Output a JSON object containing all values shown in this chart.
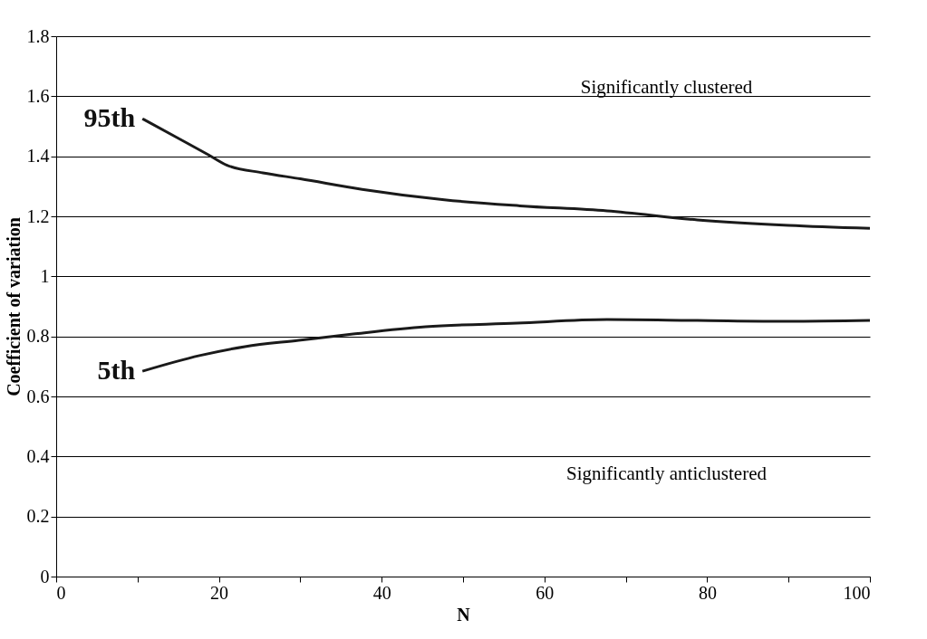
{
  "chart_data": {
    "type": "line",
    "xlabel": "N",
    "ylabel": "Coefficient of variation",
    "xlim": [
      0,
      100
    ],
    "ylim": [
      0,
      1.8
    ],
    "xticks": [
      0,
      {
        "value": 10,
        "label": null
      },
      20,
      {
        "value": 30,
        "label": null
      },
      40,
      {
        "value": 50,
        "label": null
      },
      60,
      {
        "value": 70,
        "label": null
      },
      80,
      {
        "value": 90,
        "label": null
      },
      100
    ],
    "yticks": [
      0,
      0.2,
      0.4,
      0.6,
      0.8,
      1,
      1.2,
      1.4,
      1.6,
      1.8
    ],
    "grid": "y",
    "legend": false,
    "line_style": "solid",
    "annotations": [
      "Significantly clustered",
      "Significantly anticlustered"
    ],
    "series": [
      {
        "name": "95th",
        "color": "#1a1a1a",
        "x": [
          10.6,
          15,
          18.7,
          21,
          25.4,
          30,
          37.6,
          47.7,
          57,
          67.7,
          78.8,
          90,
          100
        ],
        "values": [
          1.525,
          1.46,
          1.405,
          1.37,
          1.345,
          1.325,
          1.29,
          1.255,
          1.235,
          1.218,
          1.188,
          1.17,
          1.16
        ]
      },
      {
        "name": "5th",
        "color": "#1a1a1a",
        "x": [
          10.6,
          17.6,
          23.2,
          29.8,
          36.5,
          45.4,
          56.6,
          67.7,
          78.8,
          90,
          100
        ],
        "values": [
          0.684,
          0.736,
          0.766,
          0.787,
          0.808,
          0.832,
          0.844,
          0.856,
          0.853,
          0.85,
          0.853
        ]
      }
    ]
  }
}
